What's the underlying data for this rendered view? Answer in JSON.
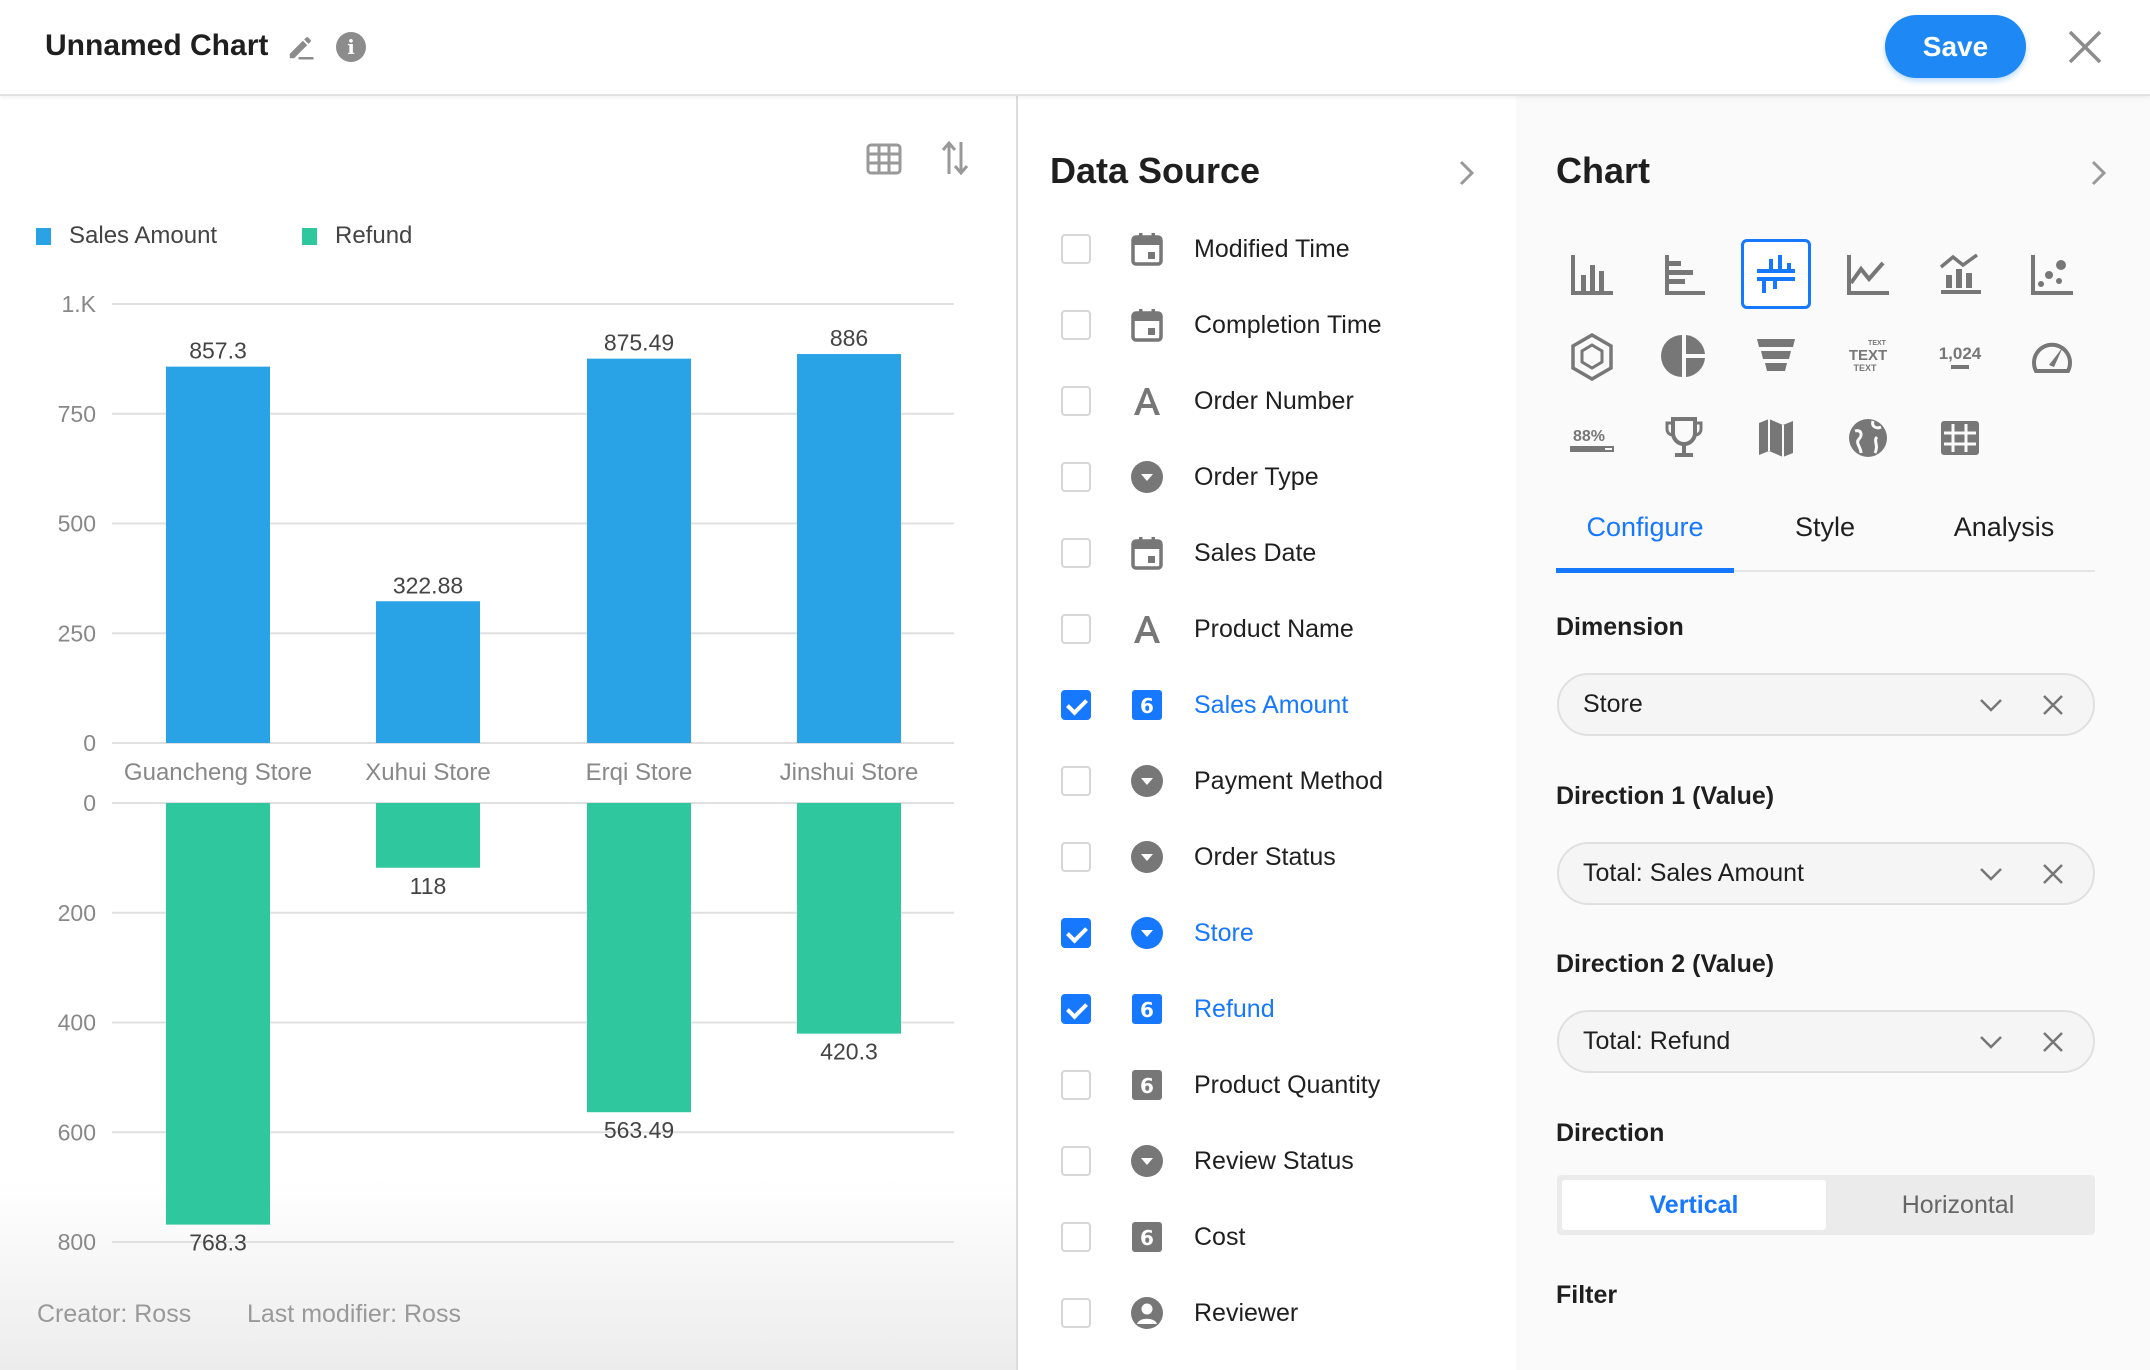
{
  "header": {
    "title": "Unnamed Chart",
    "save_label": "Save"
  },
  "legend": [
    {
      "label": "Sales Amount",
      "color": "#29a3e6"
    },
    {
      "label": "Refund",
      "color": "#2ec79e"
    }
  ],
  "footer": {
    "creator": "Creator: Ross",
    "modifier": "Last modifier: Ross"
  },
  "chart_data": {
    "type": "bar",
    "categories": [
      "Guancheng Store",
      "Xuhui Store",
      "Erqi Store",
      "Jinshui Store"
    ],
    "series": [
      {
        "name": "Sales Amount",
        "values": [
          857.3,
          322.88,
          875.49,
          886
        ],
        "labels": [
          "857.3",
          "322.88",
          "875.49",
          "886"
        ],
        "color": "#29a3e6",
        "ylim": [
          0,
          1000
        ],
        "ticks": [
          0,
          250,
          500,
          750,
          1000
        ],
        "tick_labels": [
          "0",
          "250",
          "500",
          "750",
          "1.K"
        ]
      },
      {
        "name": "Refund",
        "values": [
          768.3,
          118,
          563.49,
          420.3
        ],
        "labels": [
          "768.3",
          "118",
          "563.49",
          "420.3"
        ],
        "color": "#2ec79e",
        "ylim": [
          0,
          800
        ],
        "ticks": [
          0,
          200,
          400,
          600,
          800
        ],
        "tick_labels": [
          "0",
          "200",
          "400",
          "600",
          "800"
        ],
        "inverted": true
      }
    ],
    "grid": true,
    "legend_position": "top-left"
  },
  "data_source": {
    "title": "Data Source",
    "fields": [
      {
        "label": "Modified Time",
        "type": "date",
        "checked": false
      },
      {
        "label": "Completion Time",
        "type": "date",
        "checked": false
      },
      {
        "label": "Order Number",
        "type": "text",
        "checked": false
      },
      {
        "label": "Order Type",
        "type": "option",
        "checked": false
      },
      {
        "label": "Sales Date",
        "type": "date",
        "checked": false
      },
      {
        "label": "Product Name",
        "type": "text",
        "checked": false
      },
      {
        "label": "Sales Amount",
        "type": "number",
        "checked": true
      },
      {
        "label": "Payment Method",
        "type": "option",
        "checked": false
      },
      {
        "label": "Order Status",
        "type": "option",
        "checked": false
      },
      {
        "label": "Store",
        "type": "option",
        "checked": true
      },
      {
        "label": "Refund",
        "type": "number",
        "checked": true
      },
      {
        "label": "Product Quantity",
        "type": "number",
        "checked": false
      },
      {
        "label": "Review Status",
        "type": "option",
        "checked": false
      },
      {
        "label": "Cost",
        "type": "number",
        "checked": false
      },
      {
        "label": "Reviewer",
        "type": "person",
        "checked": false
      }
    ]
  },
  "chart_panel": {
    "title": "Chart",
    "types": [
      "column",
      "bar",
      "bidirectional",
      "line",
      "combo",
      "scatter",
      "radar",
      "pie",
      "funnel",
      "word-cloud",
      "statistic",
      "gauge",
      "progress",
      "ranking",
      "map",
      "world-map",
      "pivot-table"
    ],
    "selected_type": "bidirectional",
    "tabs": [
      "Configure",
      "Style",
      "Analysis"
    ],
    "active_tab": "Configure",
    "dimension_label": "Dimension",
    "dimension_value": "Store",
    "dir1_label": "Direction 1 (Value)",
    "dir1_value": "Total: Sales Amount",
    "dir2_label": "Direction 2 (Value)",
    "dir2_value": "Total: Refund",
    "direction_label": "Direction",
    "direction_options": [
      "Vertical",
      "Horizontal"
    ],
    "direction_selected": "Vertical",
    "filter_label": "Filter"
  },
  "colors": {
    "accent": "#1677ff",
    "save": "#1e88f5"
  }
}
